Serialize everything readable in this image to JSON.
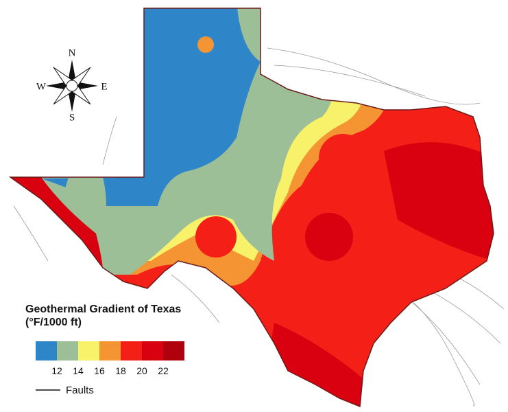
{
  "compass": {
    "north": "N",
    "south": "S",
    "east": "E",
    "west": "W"
  },
  "legend": {
    "title": "Geothermal Gradient of Texas",
    "units": "(°F/1000 ft)",
    "colors": [
      "#2e86c8",
      "#9dbf98",
      "#f7f26a",
      "#f59432",
      "#f41f16",
      "#d9000f",
      "#b0000e"
    ],
    "ticks": [
      12,
      14,
      16,
      18,
      20,
      22
    ],
    "faults_label": "Faults"
  }
}
